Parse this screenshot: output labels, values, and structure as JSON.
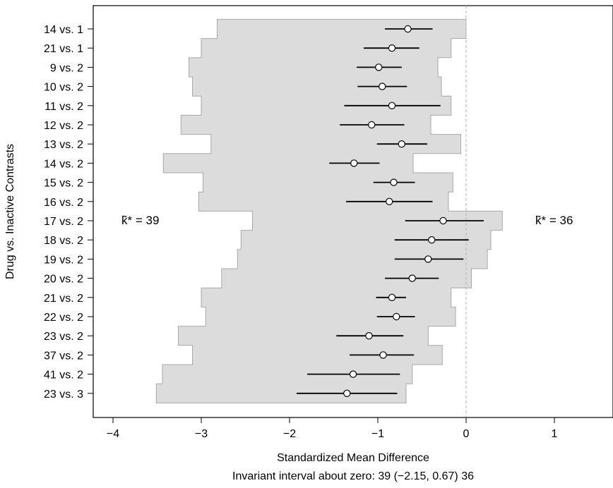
{
  "chart_data": {
    "type": "forest",
    "title": "",
    "xlabel": "Standardized Mean Difference",
    "xlabel2": "Invariant interval about zero: 39 (−2.15, 0.67) 36",
    "ylabel": "Drug vs. Inactive Contrasts",
    "xlim": [
      -4.0,
      1.5
    ],
    "xticks": [
      -4,
      -3,
      -2,
      -1,
      0,
      1
    ],
    "xtick_labels": [
      "−4",
      "−3",
      "−2",
      "−1",
      "0",
      "1"
    ],
    "reference_line": 0,
    "left_annotation": "k̃* = 39",
    "right_annotation": "k̃* = 36",
    "shading_color": "#dcdcdd",
    "shading_edge_color": "#a8a8a8",
    "categories": [
      "14 vs. 1",
      "21 vs. 1",
      "9 vs. 2",
      "10 vs. 2",
      "11 vs. 2",
      "12 vs. 2",
      "13 vs. 2",
      "14 vs. 2",
      "15 vs. 2",
      "16 vs. 2",
      "17 vs. 2",
      "18 vs. 2",
      "19 vs. 2",
      "20 vs. 2",
      "21 vs. 2",
      "22 vs. 2",
      "23 vs. 2",
      "37 vs. 2",
      "41 vs. 2",
      "23 vs. 3"
    ],
    "estimate": [
      -0.66,
      -0.84,
      -0.99,
      -0.95,
      -0.84,
      -1.07,
      -0.73,
      -1.27,
      -0.82,
      -0.87,
      -0.26,
      -0.39,
      -0.43,
      -0.61,
      -0.84,
      -0.79,
      -1.1,
      -0.94,
      -1.28,
      -1.35
    ],
    "ci_lower": [
      -0.92,
      -1.16,
      -1.24,
      -1.23,
      -1.38,
      -1.43,
      -1.01,
      -1.55,
      -1.05,
      -1.36,
      -0.69,
      -0.81,
      -0.81,
      -0.92,
      -1.02,
      -1.01,
      -1.47,
      -1.32,
      -1.8,
      -1.92
    ],
    "ci_upper": [
      -0.38,
      -0.53,
      -0.73,
      -0.67,
      -0.29,
      -0.7,
      -0.44,
      -0.98,
      -0.58,
      -0.38,
      0.2,
      0.03,
      -0.03,
      -0.31,
      -0.68,
      -0.58,
      -0.71,
      -0.59,
      -0.75,
      -0.78
    ],
    "band_left": [
      -2.82,
      -3.0,
      -3.14,
      -3.1,
      -3.0,
      -3.23,
      -2.89,
      -3.43,
      -2.98,
      -3.03,
      -2.42,
      -2.55,
      -2.59,
      -2.77,
      -3.0,
      -2.95,
      -3.26,
      -3.1,
      -3.44,
      -3.51
    ],
    "band_right": [
      0.0,
      -0.17,
      -0.32,
      -0.28,
      -0.17,
      -0.4,
      -0.06,
      -0.6,
      -0.15,
      -0.2,
      0.41,
      0.28,
      0.24,
      0.06,
      -0.17,
      -0.12,
      -0.43,
      -0.27,
      -0.61,
      -0.68
    ]
  }
}
